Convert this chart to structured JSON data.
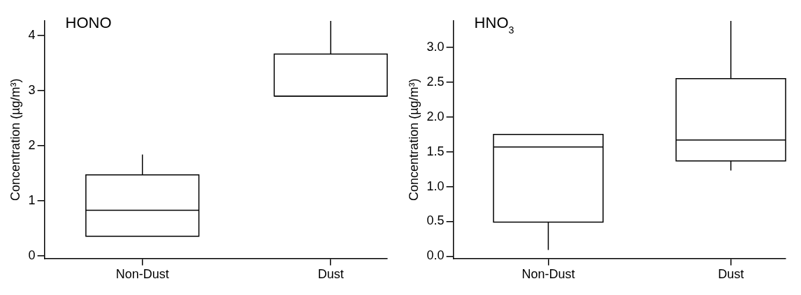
{
  "chart_data": [
    {
      "type": "box",
      "title": "HONO",
      "ylabel": "Concentration (µg/m³)",
      "categories": [
        "Non-Dust",
        "Dust"
      ],
      "boxes": [
        {
          "low": 0.36,
          "q1": 0.36,
          "median": 0.83,
          "q3": 1.47,
          "high": 1.84
        },
        {
          "low": 2.9,
          "q1": 2.9,
          "median": 2.9,
          "q3": 3.66,
          "high": 4.26
        }
      ],
      "ylim": [
        -0.04,
        4.26
      ],
      "yticks": [
        0,
        1,
        2,
        3,
        4
      ],
      "grid": false,
      "legend": false
    },
    {
      "type": "box",
      "title": "HNO$_{3}$",
      "ylabel": "Concentration (µg/m³)",
      "categories": [
        "Non-Dust",
        "Dust"
      ],
      "boxes": [
        {
          "low": 0.09,
          "q1": 0.49,
          "median": 1.57,
          "q3": 1.75,
          "high": 1.75
        },
        {
          "low": 1.23,
          "q1": 1.37,
          "median": 1.67,
          "q3": 2.55,
          "high": 3.38
        }
      ],
      "ylim": [
        -0.03,
        3.38
      ],
      "yticks": [
        {
          "value": 0,
          "label": "0.0"
        },
        0.5,
        {
          "value": 1,
          "label": "1.0"
        },
        1.5,
        {
          "value": 2,
          "label": "2.0"
        },
        2.5,
        {
          "value": 3,
          "label": "3.0"
        }
      ],
      "grid": false,
      "legend": false
    }
  ]
}
